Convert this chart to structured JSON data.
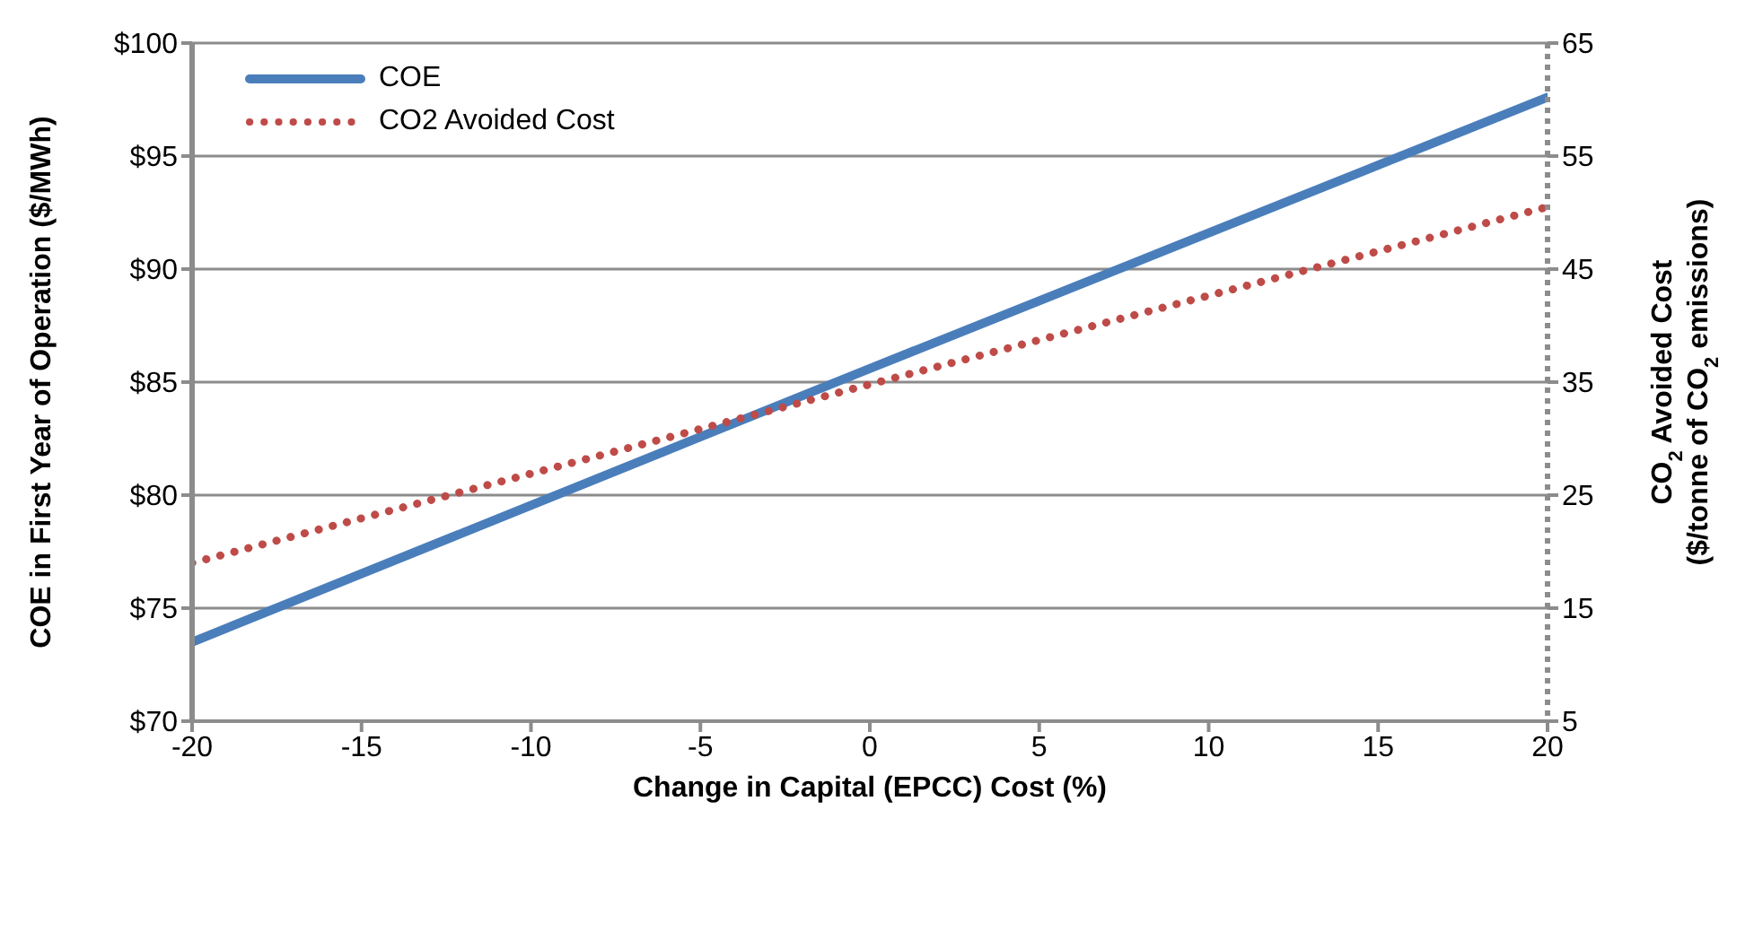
{
  "chart_data": {
    "type": "line",
    "xlabel": "Change in Capital (EPCC) Cost (%)",
    "ylabel": "COE in First Year of Operation ($/MWh)",
    "y2label": "CO$_{2}$ Avoided Cost\n($/tonne of CO$_{2}$ emissions)",
    "x": [
      -20,
      0,
      20
    ],
    "series": [
      {
        "name": "COE",
        "color": "#4a7ebb",
        "values": [
          73.5,
          85.6,
          97.6
        ],
        "line_style": "solid"
      },
      {
        "name": "CO2 Avoided Cost",
        "color": "#be4b48",
        "values": [
          19,
          34.8,
          50.5
        ],
        "axis": "y2",
        "line_style": "dotted"
      }
    ],
    "xlim": [
      -20,
      20
    ],
    "xticks": [
      -20,
      -15,
      -10,
      -5,
      0,
      5,
      10,
      15,
      20
    ],
    "ylim": [
      70,
      100
    ],
    "yticks": [
      {
        "value": 70,
        "label": "$70"
      },
      {
        "value": 75,
        "label": "$75"
      },
      {
        "value": 80,
        "label": "$80"
      },
      {
        "value": 85,
        "label": "$85"
      },
      {
        "value": 90,
        "label": "$90"
      },
      {
        "value": 95,
        "label": "$95"
      },
      {
        "value": 100,
        "label": "$100"
      }
    ],
    "y2lim": [
      5,
      65
    ],
    "y2ticks": [
      5,
      15,
      25,
      35,
      45,
      55,
      65
    ],
    "grid": "y",
    "legend": "top left",
    "marker": "none"
  }
}
